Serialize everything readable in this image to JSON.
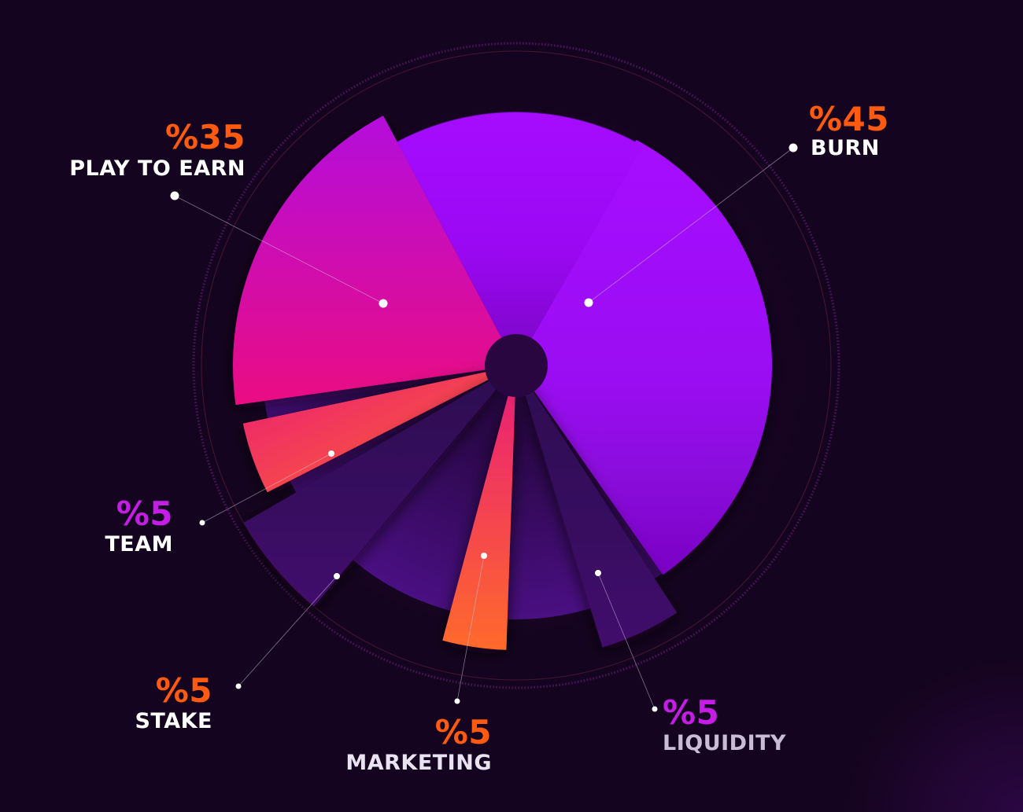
{
  "chart_data": {
    "type": "pie",
    "categories": [
      "BURN",
      "PLAY TO EARN",
      "TEAM",
      "STAKE",
      "MARKETING",
      "LIQUIDITY"
    ],
    "values": [
      45,
      35,
      5,
      5,
      5,
      5
    ],
    "value_labels": [
      "%45",
      "%35",
      "%5",
      "%5",
      "%5",
      "%5"
    ],
    "colors": {
      "burn": "#a20cff",
      "play_to_earn": "#e0088f",
      "team": "#ff6a2b",
      "stake": "#3d0a66",
      "marketing": "#ff6a2b",
      "liquidity": "#3d0a66",
      "label_orange": "#ff5a10",
      "label_magenta": "#c51ce6",
      "background": "#15041f"
    }
  }
}
